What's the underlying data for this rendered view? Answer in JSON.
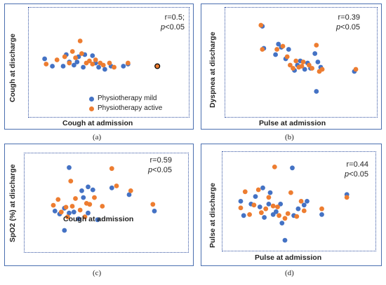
{
  "colors": {
    "mild": "#4472c4",
    "active": "#ed7d31",
    "outlier_edge": "#000000",
    "frame": "#4a6fb0"
  },
  "legend": {
    "mild": "Physiotherapy mild",
    "active": "Physiotherapy active"
  },
  "chart_data": [
    {
      "type": "scatter",
      "caption": "(a)",
      "xlabel": "Cough at admission",
      "ylabel": "Cough at discharge",
      "stat_r": "r=0.5;",
      "stat_p_prefix": "p",
      "stat_p_suffix": "<0.05",
      "xlim": [
        0,
        10
      ],
      "ylim": [
        0,
        10
      ],
      "series": [
        {
          "key": "mild",
          "points": [
            [
              0.8,
              5.2
            ],
            [
              1.3,
              4.5
            ],
            [
              2,
              4.5
            ],
            [
              2.2,
              5.6
            ],
            [
              2.4,
              4.9
            ],
            [
              2.7,
              4.6
            ],
            [
              2.9,
              4.9
            ],
            [
              3,
              5.4
            ],
            [
              3.3,
              4.4
            ],
            [
              3.4,
              5.6
            ],
            [
              3.9,
              5.5
            ],
            [
              4.1,
              4.8
            ],
            [
              4.3,
              4.4
            ],
            [
              4.7,
              4.2
            ],
            [
              5.1,
              4.5
            ],
            [
              5.9,
              4.5
            ],
            [
              6.2,
              4.7
            ]
          ]
        },
        {
          "key": "active",
          "points": [
            [
              0.9,
              4.7
            ],
            [
              1.6,
              5.1
            ],
            [
              2.1,
              5.4
            ],
            [
              2.4,
              4.8
            ],
            [
              2.6,
              5.9
            ],
            [
              2.8,
              5.3
            ],
            [
              3.1,
              6.9
            ],
            [
              3.2,
              5.7
            ],
            [
              3.5,
              4.8
            ],
            [
              3.7,
              5
            ],
            [
              3.9,
              4.7
            ],
            [
              4.1,
              5.1
            ],
            [
              4.4,
              4.8
            ],
            [
              4.6,
              4.6
            ],
            [
              5,
              4.8
            ],
            [
              5.3,
              4.4
            ],
            [
              6.2,
              4.8
            ]
          ]
        },
        {
          "key": "outlier",
          "points": [
            [
              8.1,
              4.5
            ]
          ]
        }
      ]
    },
    {
      "type": "scatter",
      "caption": "(b)",
      "xlabel": "Pulse at admission",
      "ylabel": "Dyspnea at discharge",
      "stat_r": "r=0.39",
      "stat_p_prefix": "p",
      "stat_p_suffix": "<0.05",
      "xlim": [
        0,
        10
      ],
      "ylim": [
        0,
        10
      ],
      "series": [
        {
          "key": "mild",
          "points": [
            [
              2.3,
              8.3
            ],
            [
              2.4,
              6.2
            ],
            [
              3.2,
              5.6
            ],
            [
              3.4,
              6.6
            ],
            [
              3.6,
              6.3
            ],
            [
              3.9,
              5.2
            ],
            [
              4.1,
              6.1
            ],
            [
              4.5,
              4.1
            ],
            [
              4.7,
              4.6
            ],
            [
              4.9,
              5
            ],
            [
              5.2,
              4.2
            ],
            [
              5.4,
              4.8
            ],
            [
              5.6,
              4.3
            ],
            [
              5.9,
              5.7
            ],
            [
              6.1,
              4.9
            ],
            [
              6.3,
              4.4
            ],
            [
              6,
              2.1
            ],
            [
              8.6,
              4
            ]
          ]
        },
        {
          "key": "active",
          "points": [
            [
              2.2,
              8.4
            ],
            [
              2.3,
              6.1
            ],
            [
              3.3,
              6.1
            ],
            [
              3.7,
              6.4
            ],
            [
              4,
              5.4
            ],
            [
              4.2,
              4.6
            ],
            [
              4.4,
              4.3
            ],
            [
              4.6,
              5
            ],
            [
              4.8,
              4.4
            ],
            [
              5,
              4.5
            ],
            [
              5.1,
              4.9
            ],
            [
              5.5,
              4.6
            ],
            [
              5.7,
              4.3
            ],
            [
              6,
              6.5
            ],
            [
              6.2,
              4
            ],
            [
              6.4,
              4.2
            ],
            [
              8.7,
              4.2
            ]
          ]
        }
      ]
    },
    {
      "type": "scatter",
      "caption": "(c)",
      "xlabel": "Cough at admission",
      "ylabel": "SpO2 (%) at discharge",
      "stat_r": "r=0.59",
      "stat_p_prefix": "p",
      "stat_p_suffix": "<0.05",
      "xlim": [
        0,
        10
      ],
      "ylim": [
        0,
        10
      ],
      "series": [
        {
          "key": "mild",
          "points": [
            [
              1.7,
              4.1
            ],
            [
              2,
              3.8
            ],
            [
              2.3,
              4.4
            ],
            [
              2.6,
              3.9
            ],
            [
              2.6,
              8.6
            ],
            [
              2.9,
              4
            ],
            [
              3.2,
              3.3
            ],
            [
              3.4,
              6.2
            ],
            [
              3.5,
              5.5
            ],
            [
              3.8,
              6.6
            ],
            [
              3.8,
              3.9
            ],
            [
              4.1,
              6.3
            ],
            [
              4.4,
              3.2
            ],
            [
              5.3,
              6.5
            ],
            [
              6.4,
              5.8
            ],
            [
              8,
              4.1
            ],
            [
              2.3,
              2.1
            ]
          ]
        },
        {
          "key": "active",
          "points": [
            [
              1.6,
              4.7
            ],
            [
              1.9,
              5.3
            ],
            [
              2.1,
              4
            ],
            [
              2.4,
              4.5
            ],
            [
              2.5,
              3.5
            ],
            [
              2.7,
              7.2
            ],
            [
              2.8,
              4.6
            ],
            [
              3,
              5.4
            ],
            [
              3.3,
              4.2
            ],
            [
              3.6,
              3.5
            ],
            [
              3.7,
              4.9
            ],
            [
              3.9,
              4.8
            ],
            [
              4.2,
              5.5
            ],
            [
              4.7,
              4.6
            ],
            [
              5.3,
              8.5
            ],
            [
              5.6,
              6.7
            ],
            [
              6.5,
              6.2
            ],
            [
              7.9,
              4.8
            ]
          ]
        }
      ]
    },
    {
      "type": "scatter",
      "caption": "(d)",
      "xlabel": "Pulse at admission",
      "ylabel": "Pulse at discharge",
      "stat_r": "r=0.44",
      "stat_p_prefix": "p",
      "stat_p_suffix": "<0.05",
      "xlim": [
        0,
        10
      ],
      "ylim": [
        0,
        10
      ],
      "series": [
        {
          "key": "mild",
          "points": [
            [
              1,
              4.9
            ],
            [
              1.2,
              3.4
            ],
            [
              1.7,
              4.6
            ],
            [
              2,
              5.4
            ],
            [
              2.3,
              4.3
            ],
            [
              2.5,
              6.3
            ],
            [
              2.6,
              3.2
            ],
            [
              2.9,
              4.6
            ],
            [
              3,
              5.8
            ],
            [
              3.2,
              3.5
            ],
            [
              3.4,
              3.8
            ],
            [
              3.7,
              4.6
            ],
            [
              3.8,
              2.6
            ],
            [
              4.5,
              8.4
            ],
            [
              4.6,
              3.4
            ],
            [
              4.9,
              4.1
            ],
            [
              5.3,
              4.5
            ],
            [
              5.5,
              4.9
            ],
            [
              6.5,
              3.5
            ],
            [
              8.2,
              5.6
            ],
            [
              4,
              0.8
            ]
          ]
        },
        {
          "key": "active",
          "points": [
            [
              1,
              4.2
            ],
            [
              1.3,
              5.9
            ],
            [
              1.6,
              3.5
            ],
            [
              1.9,
              4.5
            ],
            [
              2.2,
              6.1
            ],
            [
              2.4,
              3.7
            ],
            [
              2.7,
              4.1
            ],
            [
              2.9,
              5.3
            ],
            [
              3.2,
              4.4
            ],
            [
              3.3,
              8.5
            ],
            [
              3.5,
              4.3
            ],
            [
              3.6,
              3.4
            ],
            [
              4,
              3.1
            ],
            [
              4.2,
              3.6
            ],
            [
              4.4,
              5.8
            ],
            [
              4.8,
              3.3
            ],
            [
              5.1,
              4.9
            ],
            [
              5.3,
              3.9
            ],
            [
              6.5,
              4.1
            ],
            [
              8.2,
              5.3
            ]
          ]
        }
      ]
    }
  ]
}
